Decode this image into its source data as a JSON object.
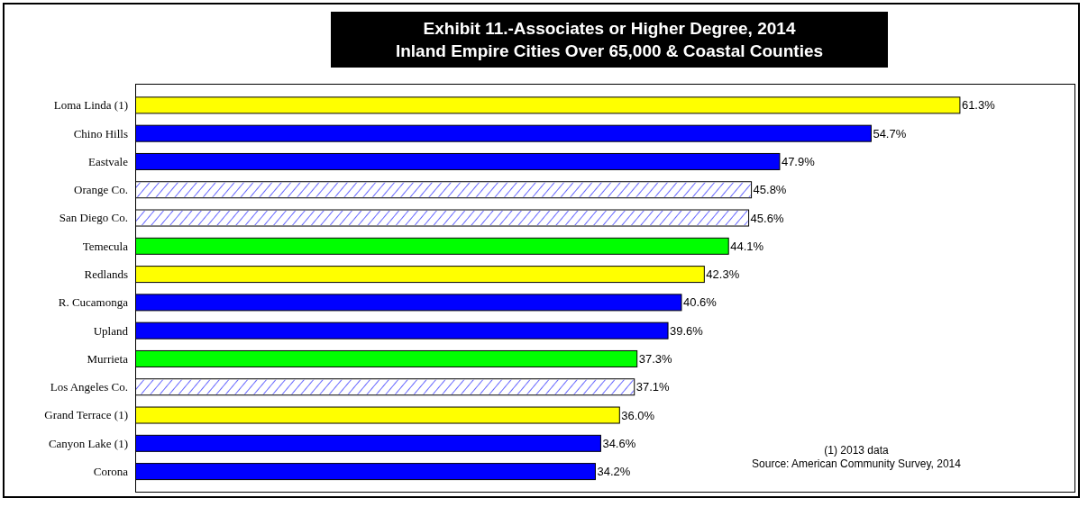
{
  "chart_data": {
    "type": "bar",
    "orientation": "horizontal",
    "title": "Exhibit 11.-Associates or Higher Degree, 2014",
    "subtitle": "Inland Empire Cities Over 65,000 & Coastal Counties",
    "categories": [
      "Loma Linda (1)",
      "Chino Hills",
      "Eastvale",
      "Orange Co.",
      "San Diego Co.",
      "Temecula",
      "Redlands",
      "R. Cucamonga",
      "Upland",
      "Murrieta",
      "Los Angeles Co.",
      "Grand Terrace (1)",
      "Canyon Lake (1)",
      "Corona"
    ],
    "values": [
      61.3,
      54.7,
      47.9,
      45.8,
      45.6,
      44.1,
      42.3,
      40.6,
      39.6,
      37.3,
      37.1,
      36.0,
      34.6,
      34.2
    ],
    "value_labels": [
      "61.3%",
      "54.7%",
      "47.9%",
      "45.8%",
      "45.6%",
      "44.1%",
      "42.3%",
      "40.6%",
      "39.6%",
      "37.3%",
      "37.1%",
      "36.0%",
      "34.6%",
      "34.2%"
    ],
    "colors": [
      "#ffff00",
      "#0000ff",
      "#0000ff",
      "#ffffff",
      "#ffffff",
      "#00ff00",
      "#ffff00",
      "#0000ff",
      "#0000ff",
      "#00ff00",
      "#ffffff",
      "#ffff00",
      "#0000ff",
      "#0000ff"
    ],
    "tick_labels": "y",
    "annotations": [
      "(1) 2013 data",
      "Source:  American Community Survey, 2014"
    ]
  }
}
